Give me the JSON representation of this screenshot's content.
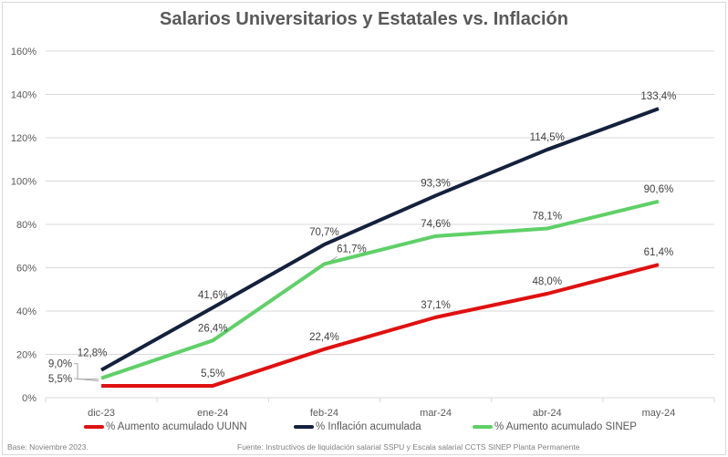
{
  "chart_data": {
    "type": "line",
    "title": "Salarios Universitarios y Estatales vs. Inflación",
    "categories": [
      "dic-23",
      "ene-24",
      "feb-24",
      "mar-24",
      "abr-24",
      "may-24"
    ],
    "yticks": [
      "0%",
      "20%",
      "40%",
      "60%",
      "80%",
      "100%",
      "120%",
      "140%",
      "160%"
    ],
    "ylim": [
      0,
      160
    ],
    "grid": true,
    "legend_position": "bottom",
    "series": [
      {
        "name": "% Aumento acumulado UUNN",
        "color": "#e01010",
        "values": [
          5.5,
          5.5,
          22.4,
          37.1,
          48.0,
          61.4
        ],
        "labels": [
          "5,5%",
          "5,5%",
          "22,4%",
          "37,1%",
          "48,0%",
          "61,4%"
        ]
      },
      {
        "name": "% Inflación acumulada",
        "color": "#14213d",
        "values": [
          12.8,
          41.6,
          70.7,
          93.3,
          114.5,
          133.4
        ],
        "labels": [
          "12,8%",
          "41,6%",
          "70,7%",
          "93,3%",
          "114,5%",
          "133,4%"
        ]
      },
      {
        "name": "% Aumento acumulado SINEP",
        "color": "#5fd068",
        "values": [
          9.0,
          26.4,
          61.7,
          74.6,
          78.1,
          90.6
        ],
        "labels": [
          "9,0%",
          "26,4%",
          "61,7%",
          "74,6%",
          "78,1%",
          "90,6%"
        ]
      }
    ]
  },
  "footer": {
    "base": "Base: Noviembre 2023.",
    "source": "Fuente: Instructivos de liquidación salarial SSPU y Escala salarial CCTS SINEP Planta Permanente"
  }
}
